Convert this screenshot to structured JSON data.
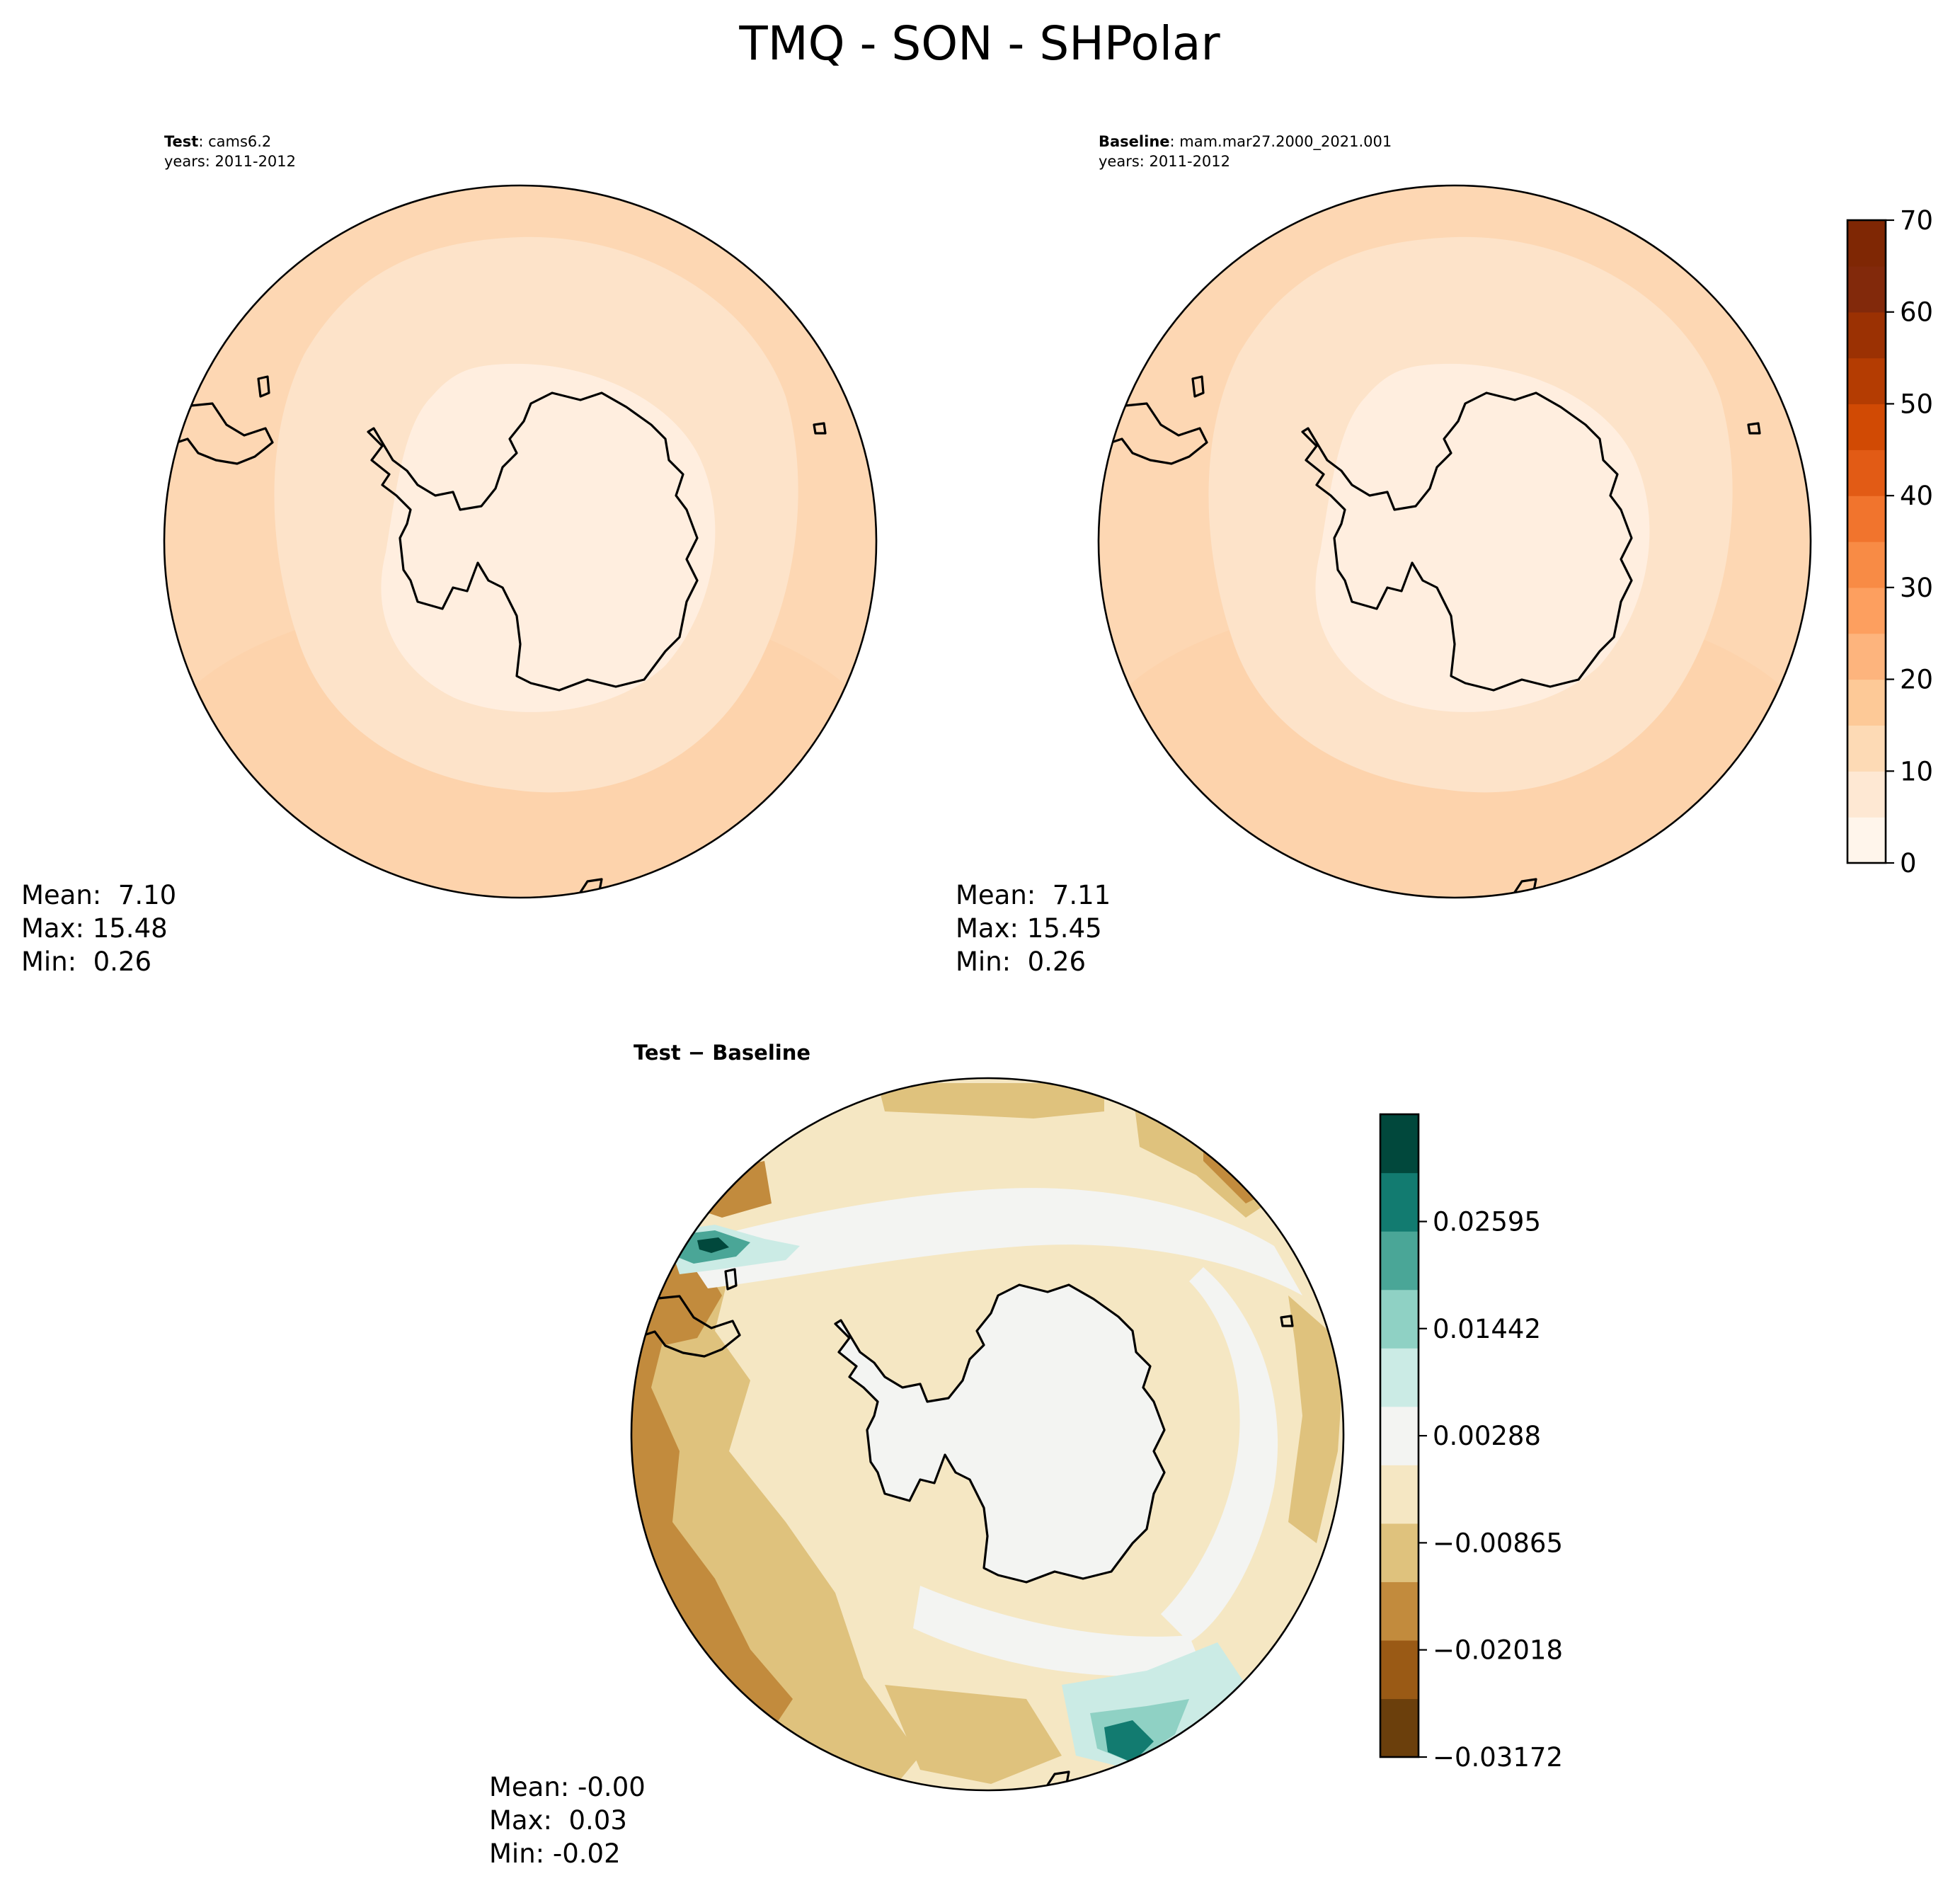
{
  "figure": {
    "title": "TMQ - SON - SHPolar"
  },
  "panels": {
    "test": {
      "label_bold": "Test",
      "label_rest": ": cams6.2",
      "years": "years: 2011-2012",
      "stats": [
        "Mean:  7.10",
        "Max: 15.48",
        "Min:  0.26"
      ]
    },
    "baseline": {
      "label_bold": "Baseline",
      "label_rest": ": mam.mar27.2000_2021.001",
      "years": "years: 2011-2012",
      "stats": [
        "Mean:  7.11",
        "Max: 15.45",
        "Min:  0.26"
      ]
    },
    "diff": {
      "label": "Test − Baseline",
      "stats": [
        "Mean: -0.00",
        "Max:  0.03",
        "Min: -0.02"
      ]
    }
  },
  "colors": {
    "field": [
      "#fff1e5",
      "#fee7d0",
      "#fddbb8",
      "#fdcda0"
    ],
    "field_bar": [
      "#fff5eb",
      "#fee8d3",
      "#fddab5",
      "#fdc997",
      "#fdb47d",
      "#fd9f5f",
      "#f88b45",
      "#f1742d",
      "#e25b15",
      "#d14a04",
      "#b43c02",
      "#9b3103",
      "#82290b",
      "#7f2704"
    ],
    "diff_bar": [
      "#6b3f0c",
      "#9a5a15",
      "#c28b3d",
      "#dfc27d",
      "#f5e7c3",
      "#f3f4f2",
      "#cbebe5",
      "#8fd1c4",
      "#4aa697",
      "#127b70",
      "#01483c"
    ]
  },
  "chart_data": [
    {
      "type": "heatmap",
      "name": "Test",
      "projection": "south polar stereographic",
      "colorbar": {
        "ticks": [
          0,
          10,
          20,
          30,
          40,
          50,
          60,
          70
        ],
        "range": [
          0,
          70
        ],
        "levels": 14
      },
      "stats": {
        "mean": 7.1,
        "max": 15.48,
        "min": 0.26
      }
    },
    {
      "type": "heatmap",
      "name": "Baseline",
      "projection": "south polar stereographic",
      "colorbar": {
        "ticks": [
          0,
          10,
          20,
          30,
          40,
          50,
          60,
          70
        ],
        "range": [
          0,
          70
        ],
        "levels": 14
      },
      "stats": {
        "mean": 7.11,
        "max": 15.45,
        "min": 0.26
      }
    },
    {
      "type": "heatmap",
      "name": "Test − Baseline",
      "projection": "south polar stereographic",
      "colorbar": {
        "tick_labels": [
          "0.02595",
          "0.01442",
          "0.00288",
          "−0.00865",
          "−0.02018",
          "−0.03172"
        ],
        "ticks": [
          0.02595,
          0.01442,
          0.00288,
          -0.00865,
          -0.02018,
          -0.03172
        ],
        "range": [
          -0.03172,
          0.0375
        ],
        "levels": 11
      },
      "stats": {
        "mean": -0.0,
        "max": 0.03,
        "min": -0.02
      }
    }
  ]
}
